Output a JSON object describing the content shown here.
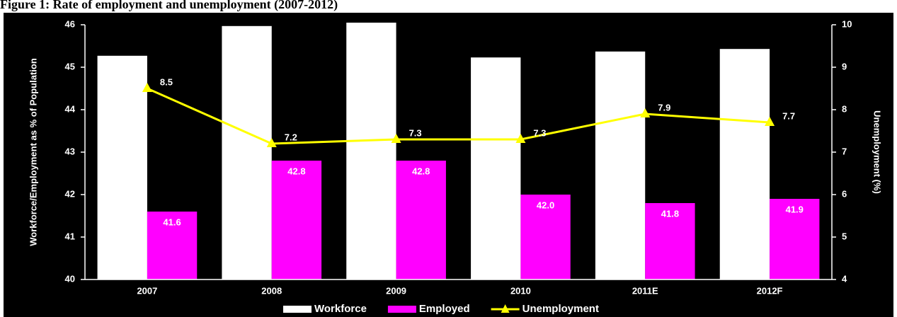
{
  "chart_data": {
    "type": "bar",
    "title": "Figure 1: Rate of employment and unemployment (2007-2012)",
    "ylabel": "Workforce/Employment as % of Population",
    "y2label": "Unemployment (%)",
    "categories": [
      "2007",
      "2008",
      "2009",
      "2010",
      "2011E",
      "2012F"
    ],
    "series": [
      {
        "name": "Workforce",
        "color": "#ffffff",
        "values": [
          45.27,
          45.97,
          46.05,
          45.23,
          45.37,
          45.43
        ]
      },
      {
        "name": "Employed",
        "color": "#ff00ff",
        "values": [
          41.6,
          42.8,
          42.8,
          42.0,
          41.8,
          41.9
        ],
        "value_labels": [
          "41.6",
          "42.8",
          "42.8",
          "42.0",
          "41.8",
          "41.9"
        ]
      },
      {
        "name": "Unemployment",
        "color": "#ffff00",
        "type": "line",
        "axis": "y2",
        "values": [
          8.5,
          7.2,
          7.3,
          7.3,
          7.9,
          7.7
        ]
      }
    ],
    "ylim": [
      40,
      46
    ],
    "yticks": [
      40,
      41,
      42,
      43,
      44,
      45,
      46
    ],
    "y2lim": [
      4,
      10
    ],
    "y2ticks": [
      4,
      5,
      6,
      7,
      8,
      9,
      10
    ],
    "grid": false,
    "legend": "bottom"
  }
}
